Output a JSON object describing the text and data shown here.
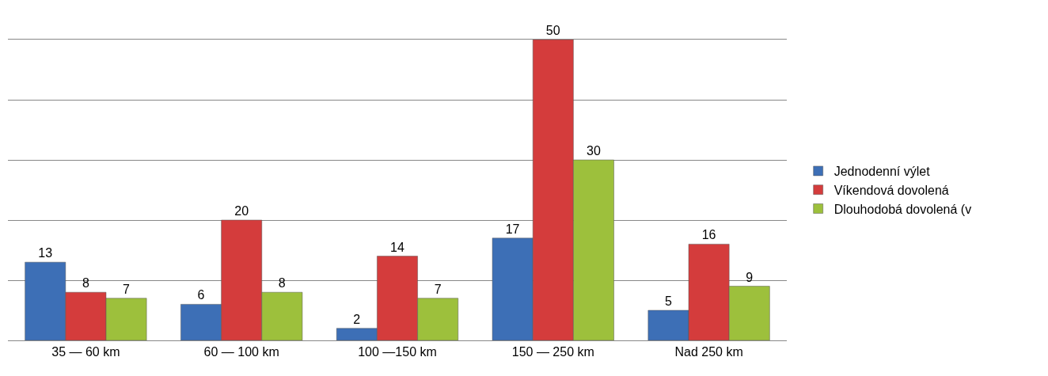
{
  "chart_data": {
    "type": "bar",
    "categories": [
      "35 — 60 km",
      "60 — 100 km",
      "100 —150 km",
      "150 — 250 km",
      "Nad 250 km"
    ],
    "series": [
      {
        "name": "Jednodenní výlet",
        "color": "#3d6fb6",
        "values": [
          13,
          6,
          2,
          17,
          5
        ]
      },
      {
        "name": "Víkendová dovolená",
        "color": "#d43c3c",
        "values": [
          8,
          20,
          14,
          50,
          16
        ]
      },
      {
        "name": "Dlouhodobá dovolená (v",
        "color": "#9dc03c",
        "values": [
          7,
          8,
          7,
          30,
          9
        ]
      }
    ],
    "ylim": [
      0,
      50
    ],
    "yticks": [
      {
        "value": 0,
        "label": null
      },
      {
        "value": 10,
        "label": null
      },
      {
        "value": 20,
        "label": null
      },
      {
        "value": 30,
        "label": null
      },
      {
        "value": 40,
        "label": null
      }
    ],
    "grid": "y",
    "legend": "right",
    "data_labels": true
  }
}
